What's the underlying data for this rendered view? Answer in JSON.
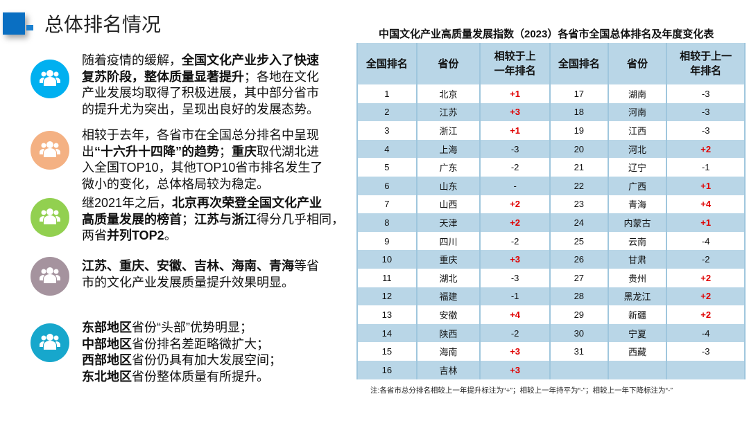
{
  "header": {
    "title": "总体排名情况"
  },
  "bullets": [
    {
      "color": "#00b0f0",
      "icon": "users-icon",
      "lines": [
        [
          {
            "t": "随着疫情的缓解，"
          },
          {
            "t": "全国文化产业步入了快速",
            "b": true
          }
        ],
        [
          {
            "t": "复苏阶段，整体质量显著提升",
            "b": true
          },
          {
            "t": "；各地在文化"
          }
        ],
        [
          {
            "t": "产业发展均取得了积极进展，其中部分省市"
          }
        ],
        [
          {
            "t": "的提升尤为突出，呈现出良好的发展态势。"
          }
        ]
      ]
    },
    {
      "color": "#f4b183",
      "icon": "users-icon",
      "lines": [
        [
          {
            "t": "相较于去年，各省市在全国总分排名中呈现"
          }
        ],
        [
          {
            "t": "出"
          },
          {
            "t": "“十六升十四降”的趋势",
            "b": true
          },
          {
            "t": "；"
          },
          {
            "t": "重庆",
            "b": true
          },
          {
            "t": "取代湖北进"
          }
        ],
        [
          {
            "t": "入全国TOP10，其他TOP10省市排名发生了"
          }
        ],
        [
          {
            "t": "微小的变化，总体格局较为稳定。"
          }
        ]
      ]
    },
    {
      "color": "#92d050",
      "icon": "users-icon",
      "lines": [
        [
          {
            "t": "继2021年之后，"
          },
          {
            "t": "北京再次荣登全国文化产业",
            "b": true
          }
        ],
        [
          {
            "t": "高质量发展的榜首",
            "b": true
          },
          {
            "t": "；"
          },
          {
            "t": "江苏与浙江",
            "b": true
          },
          {
            "t": "得分几乎相同，"
          }
        ],
        [
          {
            "t": "两省"
          },
          {
            "t": "并列TOP2",
            "b": true
          },
          {
            "t": "。"
          }
        ]
      ]
    },
    {
      "color": "#a5939e",
      "icon": "users-icon",
      "lines": [
        [
          {
            "t": "江苏、重庆、安徽、吉林、海南、青海",
            "b": true
          },
          {
            "t": "等省"
          }
        ],
        [
          {
            "t": "市的文化产业发展质量提升效果明显。"
          }
        ]
      ]
    },
    {
      "color": "#17a7cc",
      "icon": "users-icon",
      "lines": [
        [
          {
            "t": "东部地区",
            "b": true
          },
          {
            "t": "省份“头部”优势明显；"
          }
        ],
        [
          {
            "t": "中部地区",
            "b": true
          },
          {
            "t": "省份排名差距略微扩大；"
          }
        ],
        [
          {
            "t": "西部地区",
            "b": true
          },
          {
            "t": "省份仍具有加大发展空间；"
          }
        ],
        [
          {
            "t": "东北地区",
            "b": true
          },
          {
            "t": "省份整体质量有所提升。"
          }
        ]
      ]
    }
  ],
  "table": {
    "title": "中国文化产业高质量发展指数（2023）各省市全国总体排名及年度变化表",
    "headers": [
      "全国排名",
      "省份",
      "相较于上一年排名",
      "全国排名",
      "省份",
      "相较于上一年排名"
    ],
    "positive_color": "#e00000",
    "rows": [
      [
        "1",
        "北京",
        "+1",
        "17",
        "湖南",
        "-3"
      ],
      [
        "2",
        "江苏",
        "+3",
        "18",
        "河南",
        "-3"
      ],
      [
        "3",
        "浙江",
        "+1",
        "19",
        "江西",
        "-3"
      ],
      [
        "4",
        "上海",
        "-3",
        "20",
        "河北",
        "+2"
      ],
      [
        "5",
        "广东",
        "-2",
        "21",
        "辽宁",
        "-1"
      ],
      [
        "6",
        "山东",
        "-",
        "22",
        "广西",
        "+1"
      ],
      [
        "7",
        "山西",
        "+2",
        "23",
        "青海",
        "+4"
      ],
      [
        "8",
        "天津",
        "+2",
        "24",
        "内蒙古",
        "+1"
      ],
      [
        "9",
        "四川",
        "-2",
        "25",
        "云南",
        "-4"
      ],
      [
        "10",
        "重庆",
        "+3",
        "26",
        "甘肃",
        "-2"
      ],
      [
        "11",
        "湖北",
        "-3",
        "27",
        "贵州",
        "+2"
      ],
      [
        "12",
        "福建",
        "-1",
        "28",
        "黑龙江",
        "+2"
      ],
      [
        "13",
        "安徽",
        "+4",
        "29",
        "新疆",
        "+2"
      ],
      [
        "14",
        "陕西",
        "-2",
        "30",
        "宁夏",
        "-4"
      ],
      [
        "15",
        "海南",
        "+3",
        "31",
        "西藏",
        "-3"
      ],
      [
        "16",
        "吉林",
        "+3",
        "",
        "",
        ""
      ]
    ],
    "note": "注:各省市总分排名相较上一年提升标注为“+”；相较上一年持平为“-”；相较上一年下降标注为“-”"
  }
}
